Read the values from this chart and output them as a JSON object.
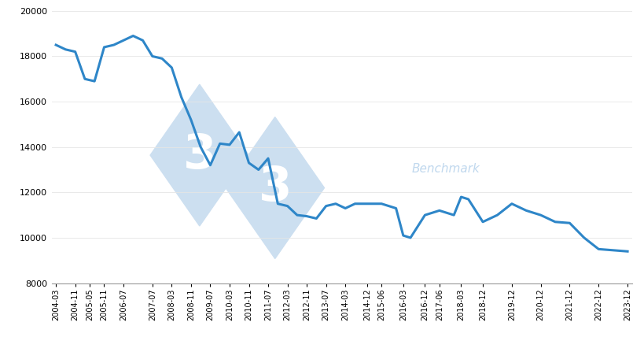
{
  "series": [
    [
      "2004-03",
      18500
    ],
    [
      "2004-07",
      18300
    ],
    [
      "2004-11",
      18200
    ],
    [
      "2005-03",
      17000
    ],
    [
      "2005-07",
      16900
    ],
    [
      "2005-11",
      18400
    ],
    [
      "2006-03",
      18500
    ],
    [
      "2006-07",
      18700
    ],
    [
      "2006-11",
      18900
    ],
    [
      "2007-03",
      18700
    ],
    [
      "2007-07",
      18000
    ],
    [
      "2007-11",
      17900
    ],
    [
      "2008-03",
      17500
    ],
    [
      "2008-07",
      16200
    ],
    [
      "2008-11",
      15200
    ],
    [
      "2009-03",
      14000
    ],
    [
      "2009-07",
      13200
    ],
    [
      "2009-11",
      14150
    ],
    [
      "2010-03",
      14100
    ],
    [
      "2010-07",
      14650
    ],
    [
      "2010-11",
      13300
    ],
    [
      "2011-03",
      13000
    ],
    [
      "2011-07",
      13500
    ],
    [
      "2011-11",
      11500
    ],
    [
      "2012-03",
      11400
    ],
    [
      "2012-07",
      11000
    ],
    [
      "2012-11",
      10950
    ],
    [
      "2013-03",
      10850
    ],
    [
      "2013-07",
      11400
    ],
    [
      "2013-11",
      11500
    ],
    [
      "2014-03",
      11300
    ],
    [
      "2014-07",
      11500
    ],
    [
      "2014-12",
      11500
    ],
    [
      "2015-06",
      11500
    ],
    [
      "2015-12",
      11300
    ],
    [
      "2016-03",
      10100
    ],
    [
      "2016-06",
      10000
    ],
    [
      "2016-12",
      11000
    ],
    [
      "2017-06",
      11200
    ],
    [
      "2017-12",
      11000
    ],
    [
      "2018-03",
      11800
    ],
    [
      "2018-06",
      11700
    ],
    [
      "2018-12",
      10700
    ],
    [
      "2019-06",
      11000
    ],
    [
      "2019-12",
      11500
    ],
    [
      "2020-06",
      11200
    ],
    [
      "2020-12",
      11000
    ],
    [
      "2021-06",
      10700
    ],
    [
      "2021-12",
      10650
    ],
    [
      "2022-06",
      10000
    ],
    [
      "2022-12",
      9500
    ],
    [
      "2023-06",
      9450
    ],
    [
      "2023-12",
      9400
    ]
  ],
  "tick_labels": [
    "2004-03",
    "2004-11",
    "2005-05",
    "2005-11",
    "2006-07",
    "2007-07",
    "2008-03",
    "2008-11",
    "2009-07",
    "2010-03",
    "2010-11",
    "2011-07",
    "2012-03",
    "2012-11",
    "2013-07",
    "2014-03",
    "2014-12",
    "2015-06",
    "2016-03",
    "2016-12",
    "2017-06",
    "2018-03",
    "2018-12",
    "2019-12",
    "2020-12",
    "2021-12",
    "2022-12",
    "2023-12"
  ],
  "line_color": "#2e86c8",
  "line_width": 2.2,
  "background_color": "#ffffff",
  "ylim": [
    8000,
    20000
  ],
  "yticks": [
    8000,
    10000,
    12000,
    14000,
    16000,
    18000,
    20000
  ],
  "grid_color": "#e5e5e5",
  "watermark_text_color": "#ffffff",
  "watermark_bg_color": "#ccdff0",
  "benchmark_color": "#c0d8ee"
}
